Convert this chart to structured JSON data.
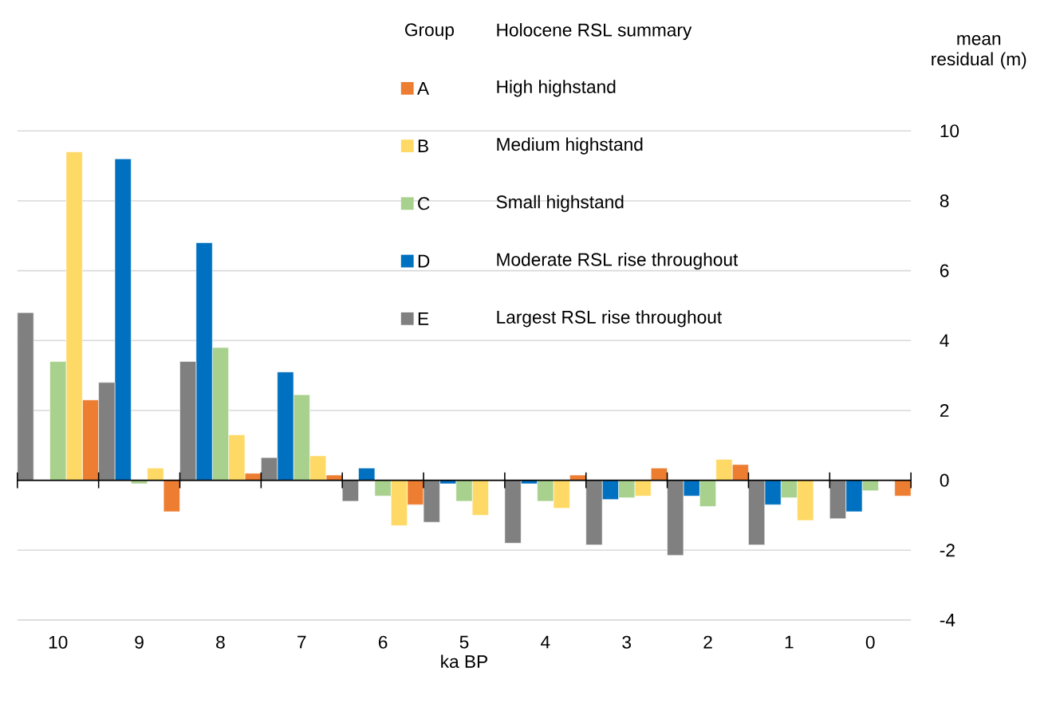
{
  "chart_data": {
    "type": "bar",
    "xlabel": "ka BP",
    "ylabel": "mean residual (m)",
    "legend_title": "Group",
    "categories": [
      "10",
      "9",
      "8",
      "7",
      "6",
      "5",
      "4",
      "3",
      "2",
      "1",
      "0"
    ],
    "series": [
      {
        "name": "A",
        "color": "#ed7d31",
        "values": [
          2.3,
          -0.9,
          0.2,
          0.15,
          -0.7,
          null,
          0.15,
          0.35,
          0.45,
          null,
          -0.45
        ]
      },
      {
        "name": "B",
        "color": "#ffd966",
        "values": [
          9.4,
          0.35,
          1.3,
          0.7,
          -1.3,
          -1.0,
          -0.8,
          -0.45,
          0.6,
          -1.15,
          null
        ]
      },
      {
        "name": "C",
        "color": "#a9d18e",
        "values": [
          3.4,
          -0.1,
          3.8,
          2.45,
          -0.45,
          -0.6,
          -0.6,
          -0.5,
          -0.75,
          -0.5,
          -0.3
        ]
      },
      {
        "name": "D",
        "color": "#0070c0",
        "values": [
          null,
          9.2,
          6.8,
          3.1,
          0.35,
          -0.1,
          -0.1,
          -0.55,
          -0.45,
          -0.7,
          -0.9
        ]
      },
      {
        "name": "E",
        "color": "#808080",
        "values": [
          4.8,
          2.8,
          3.4,
          0.65,
          -0.6,
          -1.2,
          -1.8,
          -1.85,
          -2.15,
          -1.85,
          -1.1
        ]
      }
    ],
    "annotations": [
      "Holocene RSL summary",
      "High highstand",
      "Medium highstand",
      "Small highstand",
      "Moderate RSL rise throughout",
      "Largest RSL rise throughout"
    ],
    "ylim": [
      -4,
      10
    ],
    "yticks": [
      -4,
      -2,
      0,
      2,
      4,
      6,
      8,
      10
    ],
    "grid": "y",
    "legend": "top"
  }
}
